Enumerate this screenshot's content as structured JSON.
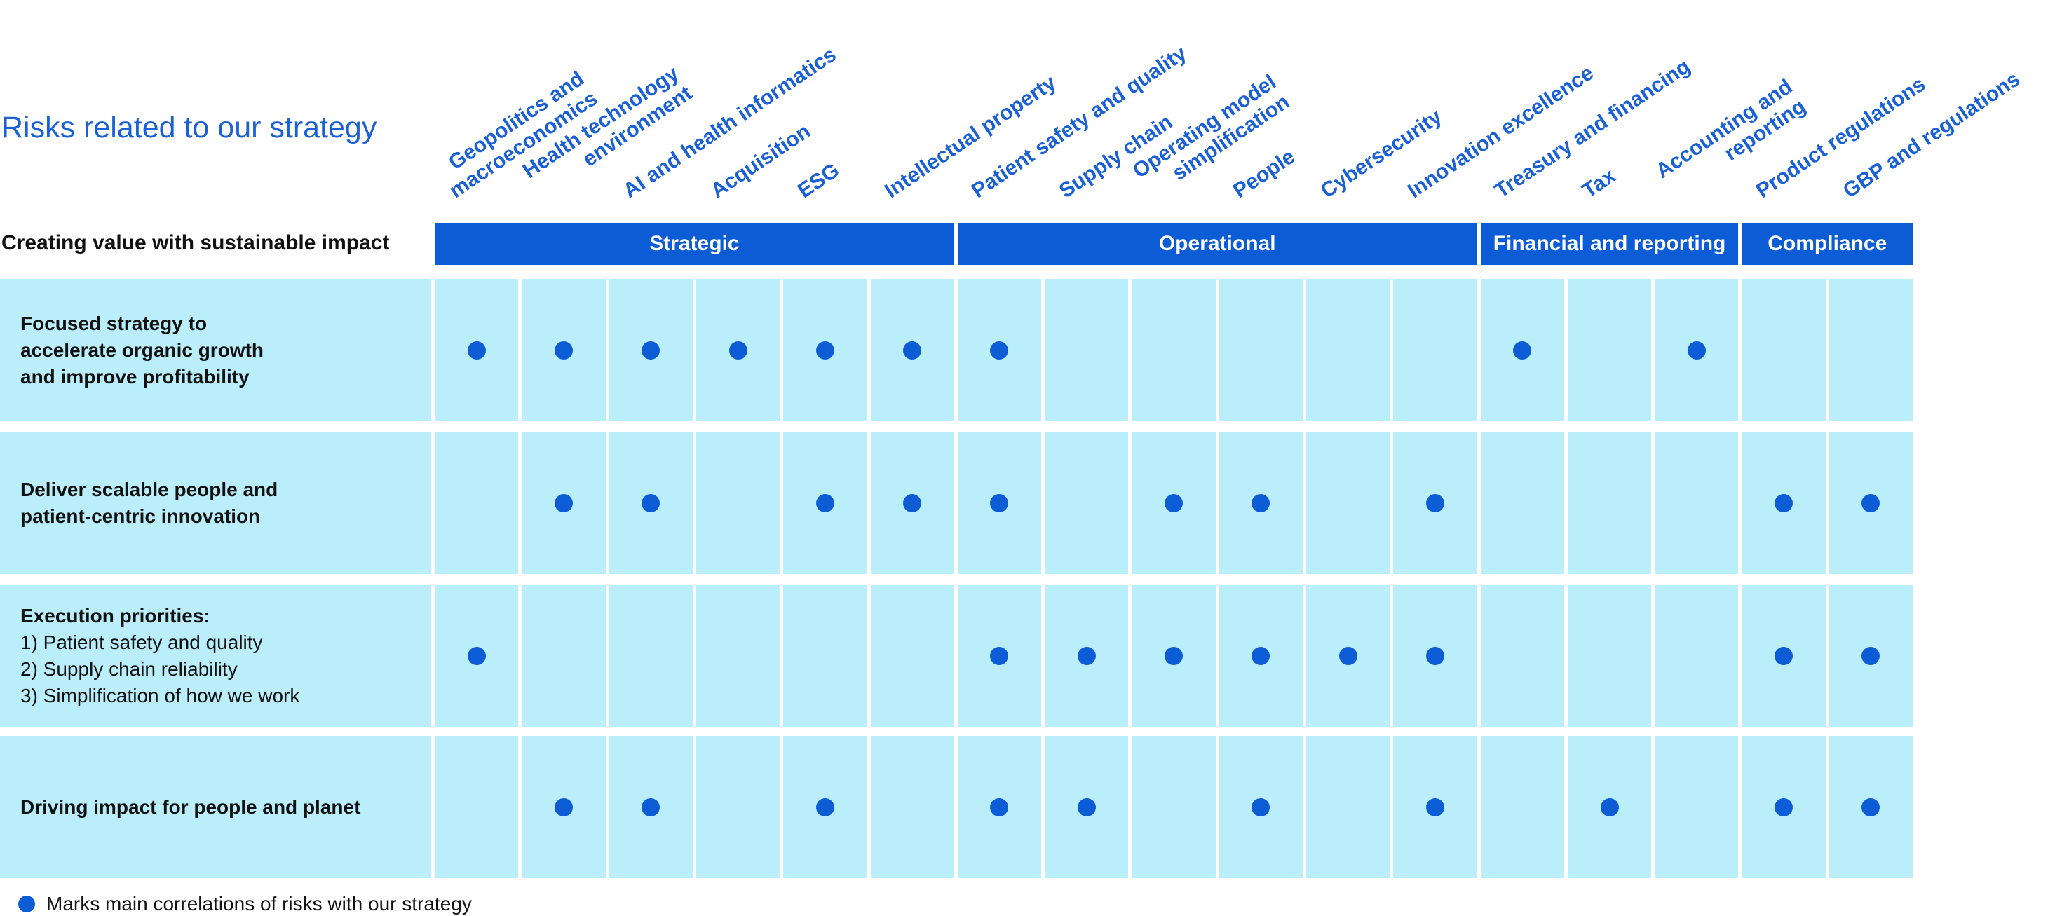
{
  "title": "Risks related to our strategy",
  "subtitle": "Creating value with sustainable impact",
  "columns": [
    {
      "label": "Geopolitics and\nmacroeconomics"
    },
    {
      "label": "Health technology\nenvironment"
    },
    {
      "label": "AI and health informatics"
    },
    {
      "label": "Acquisition"
    },
    {
      "label": "ESG"
    },
    {
      "label": "Intellectual property"
    },
    {
      "label": "Patient safety and quality"
    },
    {
      "label": "Supply chain"
    },
    {
      "label": "Operating model\nsimplification"
    },
    {
      "label": "People"
    },
    {
      "label": "Cybersecurity"
    },
    {
      "label": "Innovation excellence"
    },
    {
      "label": "Treasury and financing"
    },
    {
      "label": "Tax"
    },
    {
      "label": "Accounting and\nreporting"
    },
    {
      "label": "Product regulations"
    },
    {
      "label": "GBP and regulations"
    }
  ],
  "groups": [
    {
      "label": "Strategic",
      "start": 0,
      "span": 6
    },
    {
      "label": "Operational",
      "start": 6,
      "span": 6
    },
    {
      "label": "Financial and reporting",
      "start": 12,
      "span": 3
    },
    {
      "label": "Compliance",
      "start": 15,
      "span": 2
    }
  ],
  "rows": [
    {
      "label_lines": [
        {
          "text": "Focused strategy to",
          "bold": true
        },
        {
          "text": "accelerate organic growth",
          "bold": true
        },
        {
          "text": "and improve profitability",
          "bold": true
        }
      ],
      "marks": [
        1,
        1,
        1,
        1,
        1,
        1,
        1,
        0,
        0,
        0,
        0,
        0,
        1,
        0,
        1,
        0,
        0
      ]
    },
    {
      "label_lines": [
        {
          "text": "Deliver scalable people and",
          "bold": true
        },
        {
          "text": "patient-centric innovation",
          "bold": true
        }
      ],
      "marks": [
        0,
        1,
        1,
        0,
        1,
        1,
        1,
        0,
        1,
        1,
        0,
        1,
        0,
        0,
        0,
        1,
        1
      ]
    },
    {
      "label_lines": [
        {
          "text": "Execution priorities:",
          "bold": true
        },
        {
          "text": "1) Patient safety and quality",
          "bold": false
        },
        {
          "text": "2) Supply chain reliability",
          "bold": false
        },
        {
          "text": "3) Simplification of how we work",
          "bold": false
        }
      ],
      "marks": [
        1,
        0,
        0,
        0,
        0,
        0,
        1,
        1,
        1,
        1,
        1,
        1,
        0,
        0,
        0,
        1,
        1
      ]
    },
    {
      "label_lines": [
        {
          "text": "Driving impact for people and planet",
          "bold": true
        }
      ],
      "marks": [
        0,
        1,
        1,
        0,
        1,
        0,
        1,
        1,
        0,
        1,
        0,
        1,
        0,
        1,
        0,
        1,
        1
      ]
    }
  ],
  "legend": {
    "text": "Marks main correlations of risks with our strategy"
  },
  "colors": {
    "accent": "#0c5cd6",
    "cell_bg": "#baeefb",
    "title": "#1a60d6"
  }
}
